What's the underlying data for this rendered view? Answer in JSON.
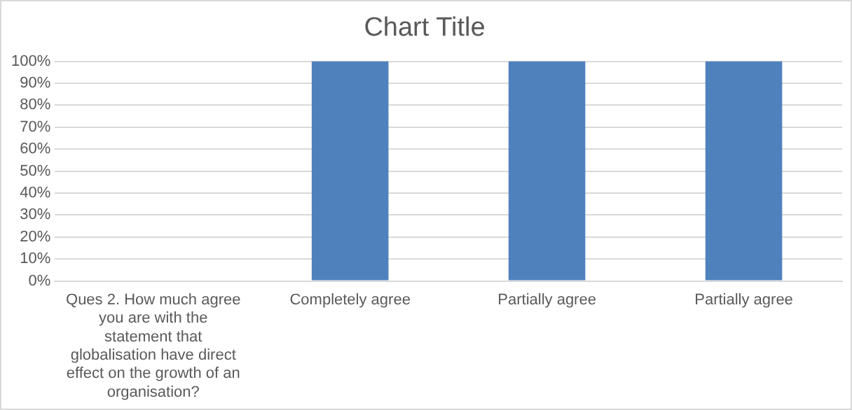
{
  "chart_data": {
    "type": "bar",
    "title": "Chart Title",
    "categories": [
      "Ques 2. How much agree you are with the statement that globalisation have direct effect on the growth of an organisation?",
      "Completely agree",
      "Partially agree",
      "Partially agree"
    ],
    "values": [
      null,
      100,
      100,
      100
    ],
    "color": "#4f81bd",
    "ylim": [
      0,
      100
    ],
    "yticks": [
      {
        "value": 0,
        "label": "0%"
      },
      {
        "value": 10,
        "label": "10%"
      },
      {
        "value": 20,
        "label": "20%"
      },
      {
        "value": 30,
        "label": "30%"
      },
      {
        "value": 40,
        "label": "40%"
      },
      {
        "value": 50,
        "label": "50%"
      },
      {
        "value": 60,
        "label": "60%"
      },
      {
        "value": 70,
        "label": "70%"
      },
      {
        "value": 80,
        "label": "80%"
      },
      {
        "value": 90,
        "label": "90%"
      },
      {
        "value": 100,
        "label": "100%"
      }
    ],
    "grid": "y"
  }
}
